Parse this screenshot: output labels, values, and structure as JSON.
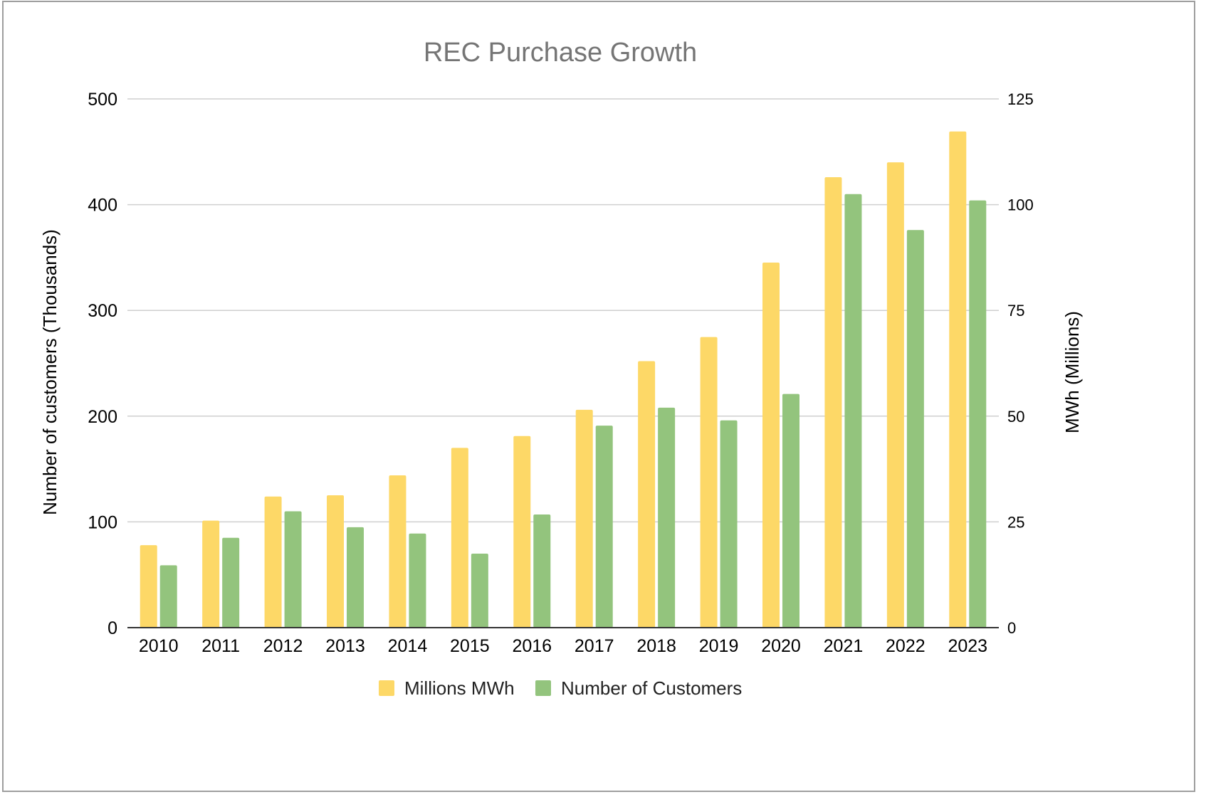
{
  "chart_data": {
    "type": "bar",
    "title": "REC Purchase Growth",
    "categories": [
      "2010",
      "2011",
      "2012",
      "2013",
      "2014",
      "2015",
      "2016",
      "2017",
      "2018",
      "2019",
      "2020",
      "2021",
      "2022",
      "2023"
    ],
    "series": [
      {
        "name": "Millions MWh",
        "axis": "right",
        "color": "#FDD867",
        "values": [
          19.5,
          25.3,
          31,
          31.3,
          36,
          42.5,
          45.3,
          51.5,
          63,
          68.7,
          86.3,
          106.5,
          110,
          117.3
        ]
      },
      {
        "name": "Number of Customers",
        "axis": "left",
        "color": "#93C47D",
        "values": [
          59,
          85,
          110,
          95,
          89,
          70,
          107,
          191,
          208,
          196,
          221,
          410,
          376,
          404
        ]
      }
    ],
    "ylabel": "Number of customers (Thousands)",
    "y2label": "MWh (Millions)",
    "xlabel": "",
    "ylim": [
      0,
      500
    ],
    "y2lim": [
      0,
      125
    ],
    "yticks": [
      "0",
      "100",
      "200",
      "300",
      "400",
      "500"
    ],
    "y2ticks": [
      "0",
      "25",
      "50",
      "75",
      "100",
      "125"
    ],
    "grid": true,
    "legend_position": "bottom"
  }
}
